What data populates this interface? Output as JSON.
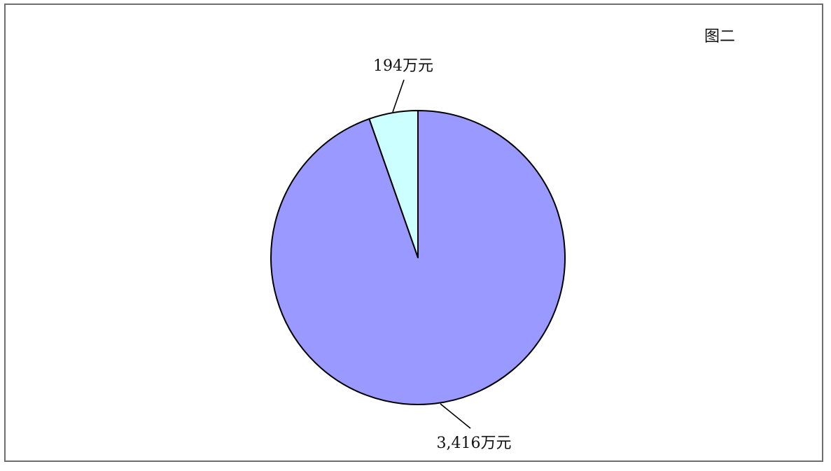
{
  "chart_data": {
    "type": "pie",
    "title": "图二",
    "slices": [
      {
        "value": 3416,
        "label": "3,416万元",
        "color": "#9999ff"
      },
      {
        "value": 194,
        "label": "194万元",
        "color": "#ccffff"
      }
    ],
    "start_angle_deg": 0,
    "direction": "clockwise",
    "legend": "none",
    "edge_color": "#000000"
  }
}
